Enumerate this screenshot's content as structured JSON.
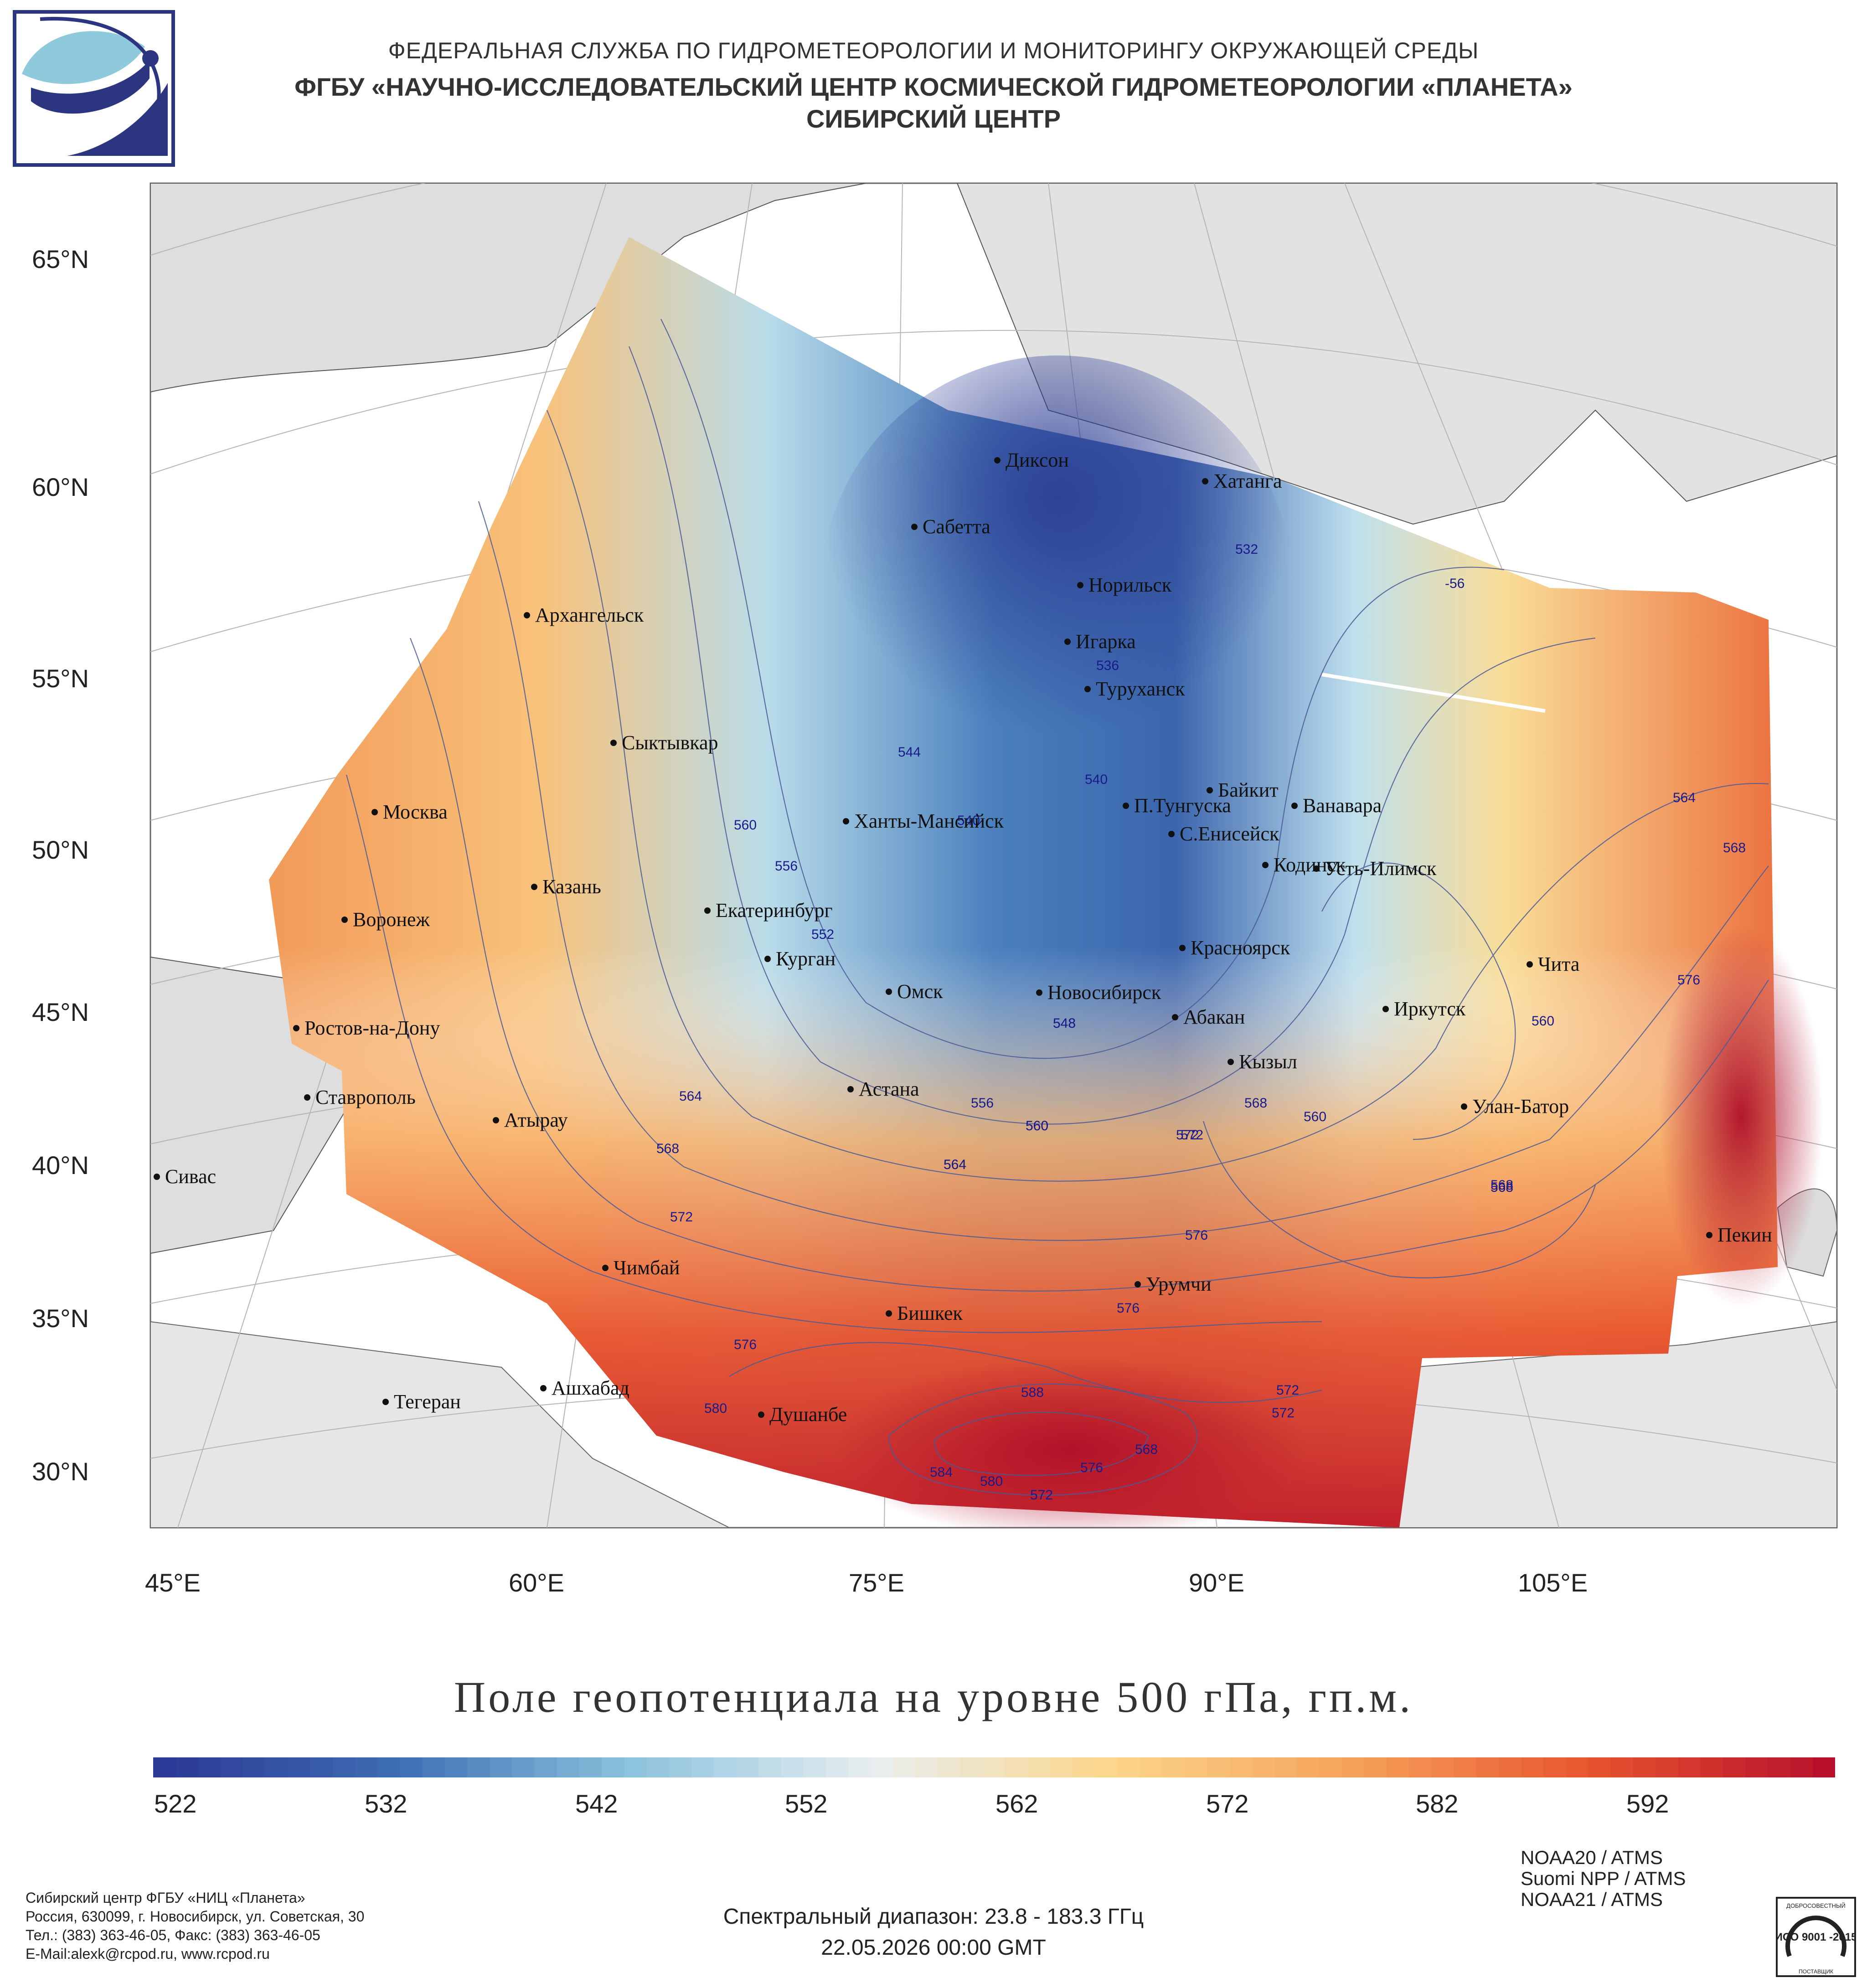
{
  "header": {
    "line1": "ФЕДЕРАЛЬНАЯ СЛУЖБА ПО ГИДРОМЕТЕОРОЛОГИИ И МОНИТОРИНГУ ОКРУЖАЮЩЕЙ СРЕДЫ",
    "line2": "ФГБУ «НАУЧНО-ИССЛЕДОВАТЕЛЬСКИЙ ЦЕНТР КОСМИЧЕСКОЙ ГИДРОМЕТЕОРОЛОГИИ «ПЛАНЕТА»",
    "line3": "СИБИРСКИЙ ЦЕНТР"
  },
  "map": {
    "lat_labels": [
      "65°N",
      "60°N",
      "55°N",
      "50°N",
      "45°N",
      "40°N",
      "35°N",
      "30°N"
    ],
    "lon_labels": [
      "45°E",
      "60°E",
      "75°E",
      "90°E",
      "105°E"
    ],
    "cities": [
      "Диксон",
      "Хатанга",
      "Сабетта",
      "Норильск",
      "Игарка",
      "Архангельск",
      "Туруханск",
      "Сыктывкар",
      "Байкит",
      "Москва",
      "П.Тунгуска",
      "Ванавара",
      "Ханты-Мансийск",
      "С.Енисейск",
      "Кодинск",
      "Усть-Илимск",
      "Казань",
      "Екатеринбург",
      "Воронеж",
      "Красноярск",
      "Курган",
      "Чита",
      "Омск",
      "Новосибирск",
      "Иркутск",
      "Ростов-на-Дону",
      "Абакан",
      "Кызыл",
      "Ставрополь",
      "Астана",
      "Улан-Батор",
      "Атырау",
      "Сивас",
      "Пекин",
      "Чимбай",
      "Урумчи",
      "Бишкек",
      "Ашхабад",
      "Тегеран",
      "Душанбе"
    ],
    "contour_labels": [
      "532",
      "-56",
      "536",
      "544",
      "540",
      "540",
      "560",
      "548",
      "556",
      "552",
      "560",
      "564",
      "568",
      "572",
      "576",
      "580",
      "584",
      "588",
      "564",
      "548",
      "556",
      "560",
      "564",
      "568",
      "572",
      "572",
      "576",
      "576",
      "572",
      "568",
      "576",
      "580",
      "568",
      "572",
      "576",
      "560",
      "560",
      "568",
      "572",
      "564",
      "568"
    ],
    "field_range": [
      522,
      597
    ],
    "palette": [
      "#2b3895",
      "#3f6fb4",
      "#8fc4de",
      "#e9eef0",
      "#fbd58a",
      "#f6a25a",
      "#e8552f",
      "#b8102c"
    ]
  },
  "title": "Поле геопотенциала на уровне 500 гПа, гп.м.",
  "colorbar": {
    "ticks": [
      "522",
      "532",
      "542",
      "552",
      "562",
      "572",
      "582",
      "592"
    ]
  },
  "footer": {
    "org1": "Сибирский центр ФГБУ «НИЦ «Планета»",
    "org2": "Россия, 630099, г. Новосибирск, ул. Советская, 30",
    "org3": "Тел.: (383) 363-46-05, Факс: (383) 363-46-05",
    "org4": "E-Mail:alexk@rcpod.ru, www.rcpod.ru",
    "spectral": "Спектральный диапазон: 23.8 - 183.3 ГГц",
    "datetime": "22.05.2026 00:00 GMT",
    "sat1": "NOAA20 / ATMS",
    "sat2": "Suomi NPP / ATMS",
    "sat3": "NOAA21 / ATMS",
    "cert": "ИСО 9001 -2015",
    "cert_top": "ДОБРОСОВЕСТНЫЙ",
    "cert_bottom": "ПОСТАВЩИК"
  }
}
